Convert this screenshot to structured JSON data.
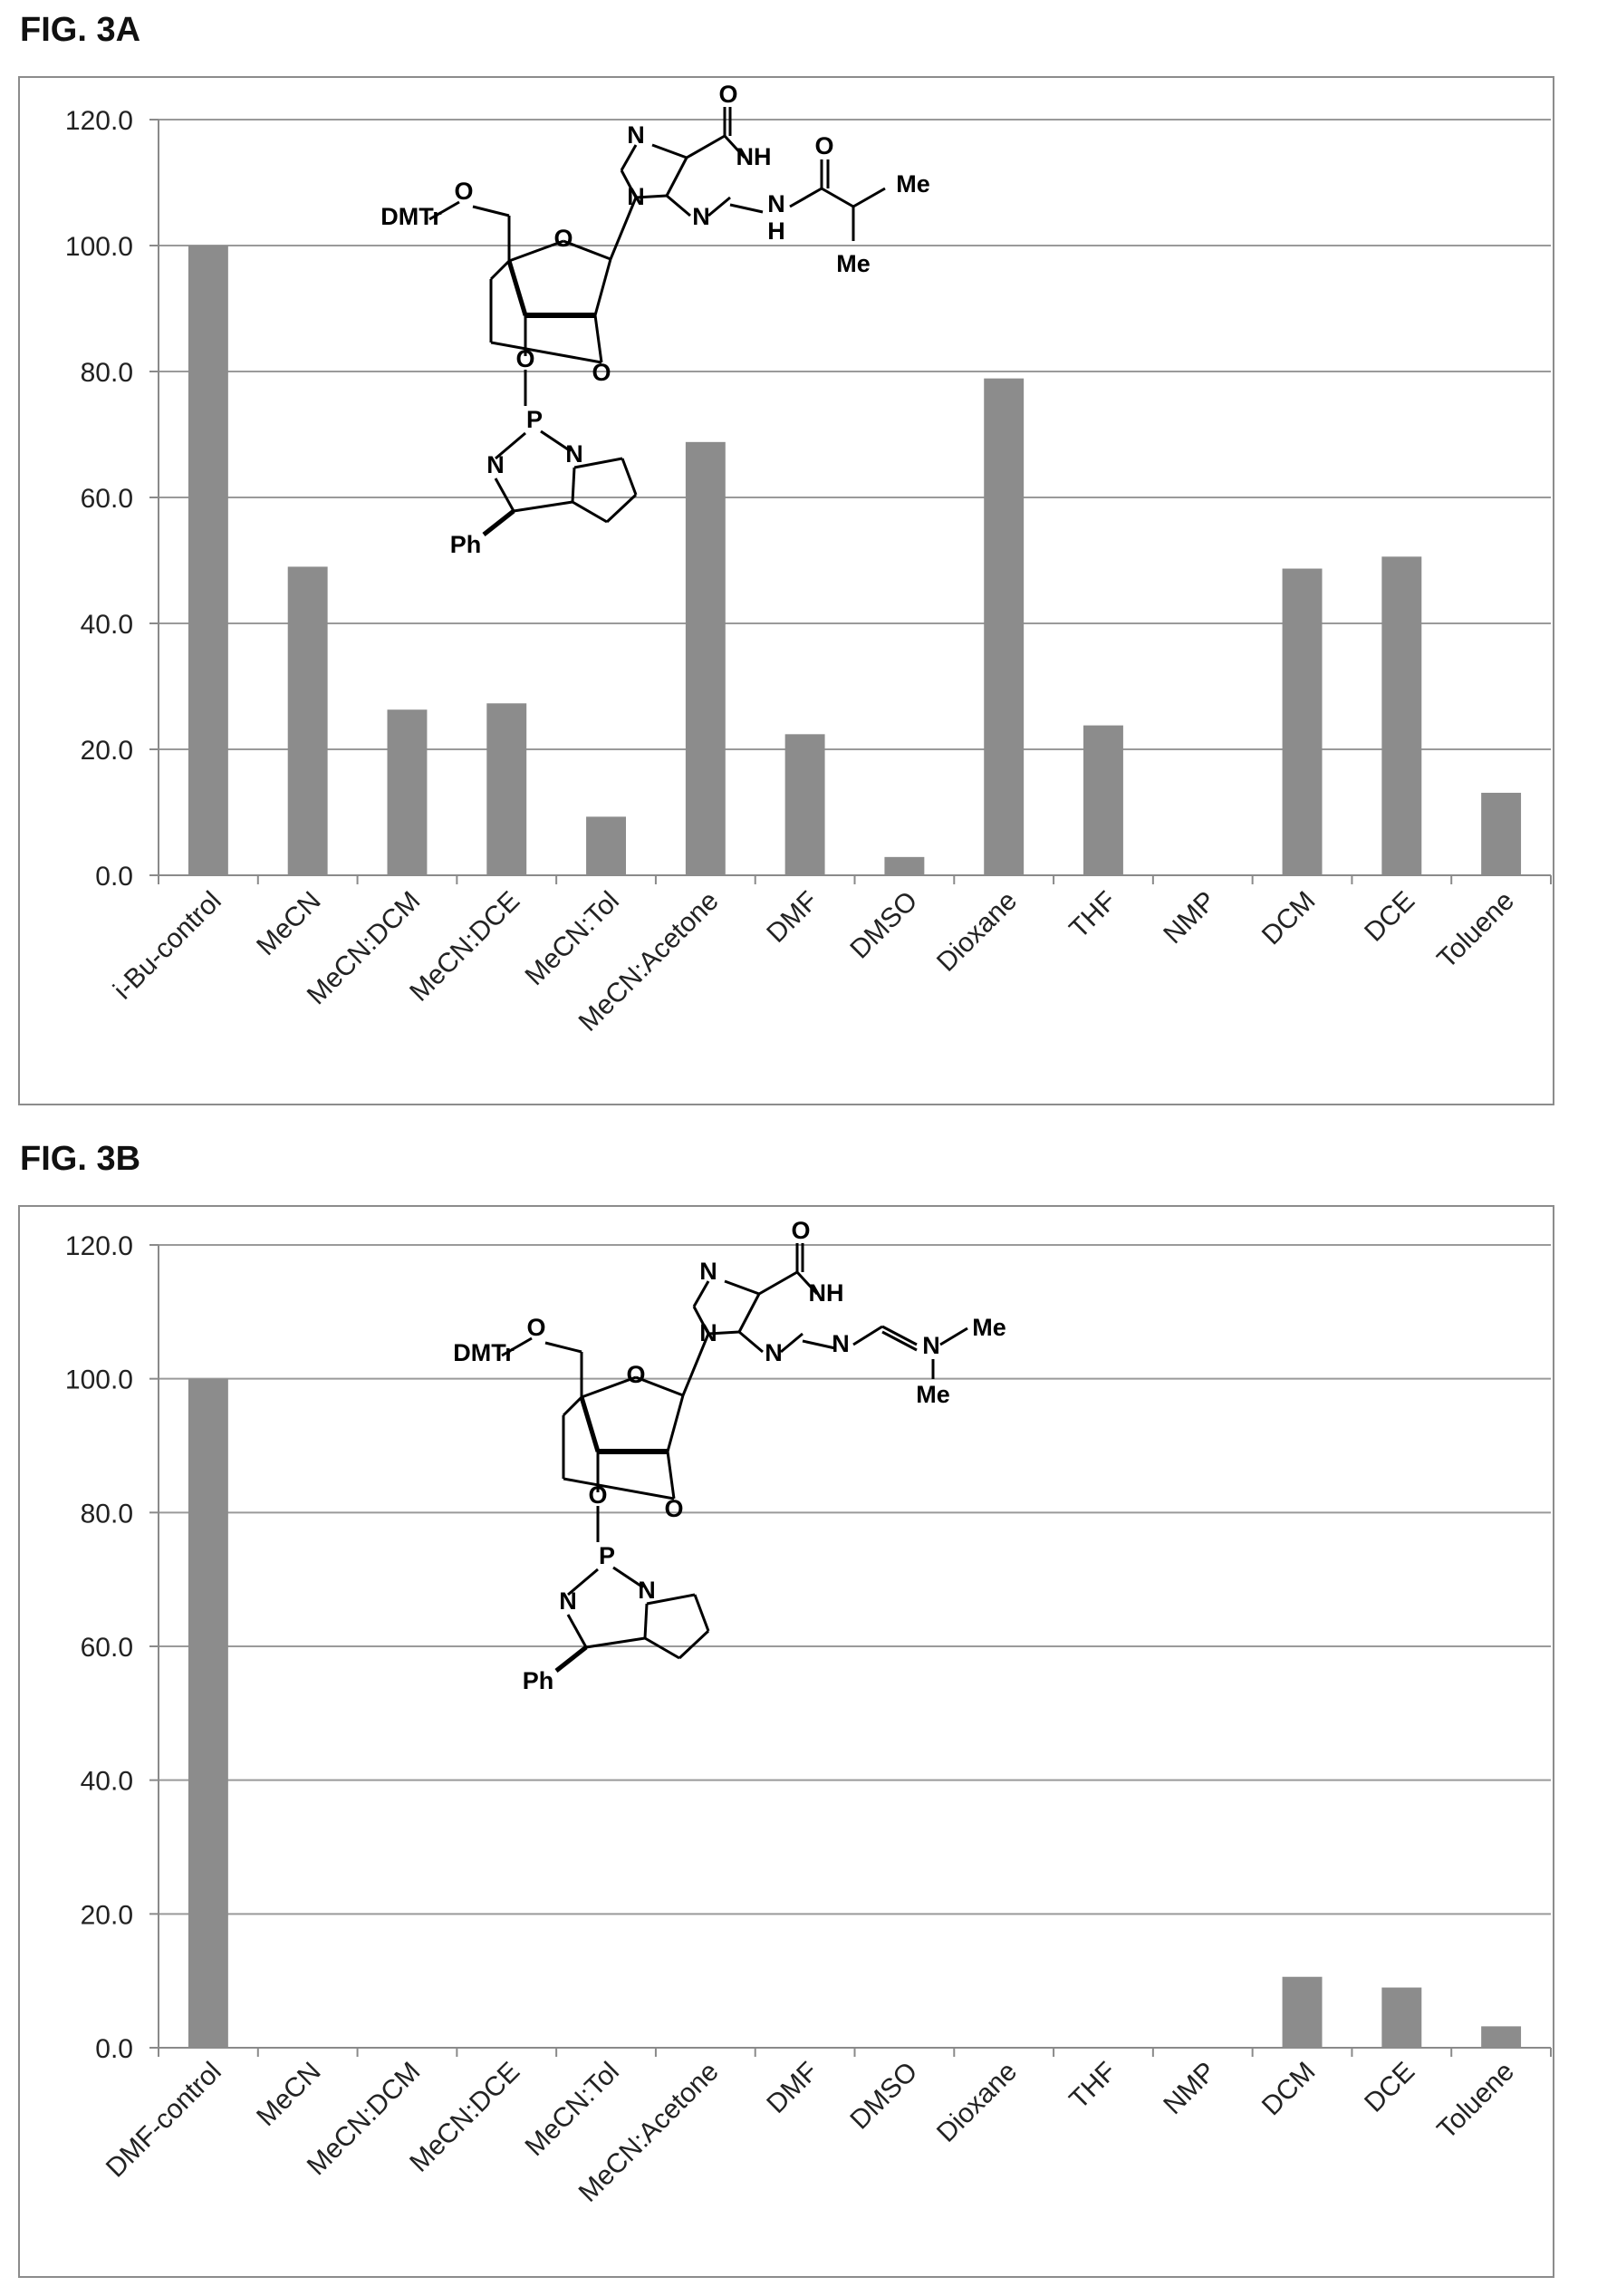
{
  "figures": [
    {
      "label": "FIG. 3A"
    },
    {
      "label": "FIG. 3B"
    }
  ],
  "chart_data": [
    {
      "type": "bar",
      "categories": [
        "i-Bu-control",
        "MeCN",
        "MeCN:DCM",
        "MeCN:DCE",
        "MeCN:Tol",
        "MeCN:Acetone",
        "DMF",
        "DMSO",
        "Dioxane",
        "THF",
        "NMP",
        "DCM",
        "DCE",
        "Toluene"
      ],
      "values": [
        100.0,
        49.0,
        26.3,
        27.3,
        9.3,
        68.8,
        22.4,
        2.9,
        78.9,
        23.8,
        0,
        48.7,
        50.6,
        13.1
      ],
      "ylim": [
        0,
        120
      ],
      "yticks": [
        "0.0",
        "20.0",
        "40.0",
        "60.0",
        "80.0",
        "100.0",
        "120.0"
      ],
      "grid": true,
      "bar_color": "#8c8c8c",
      "structure_labels": [
        "DMTr",
        "O",
        "O",
        "O",
        "O",
        "P",
        "N",
        "Ph",
        "N",
        "N",
        "N",
        "N",
        "O",
        "NH",
        "N",
        "H",
        "O",
        "Me",
        "Me"
      ]
    },
    {
      "type": "bar",
      "categories": [
        "DMF-control",
        "MeCN",
        "MeCN:DCM",
        "MeCN:DCE",
        "MeCN:Tol",
        "MeCN:Acetone",
        "DMF",
        "DMSO",
        "Dioxane",
        "THF",
        "NMP",
        "DCM",
        "DCE",
        "Toluene"
      ],
      "values": [
        100.0,
        0,
        0,
        0,
        0,
        0,
        0,
        0,
        0,
        0,
        0,
        10.6,
        9.0,
        3.2
      ],
      "ylim": [
        0,
        120
      ],
      "yticks": [
        "0.0",
        "20.0",
        "40.0",
        "60.0",
        "80.0",
        "100.0",
        "120.0"
      ],
      "grid": true,
      "bar_color": "#8c8c8c",
      "structure_labels": [
        "DMTr",
        "O",
        "O",
        "O",
        "O",
        "P",
        "N",
        "Ph",
        "N",
        "N",
        "N",
        "N",
        "O",
        "NH",
        "N",
        "N",
        "Me",
        "Me"
      ]
    }
  ]
}
